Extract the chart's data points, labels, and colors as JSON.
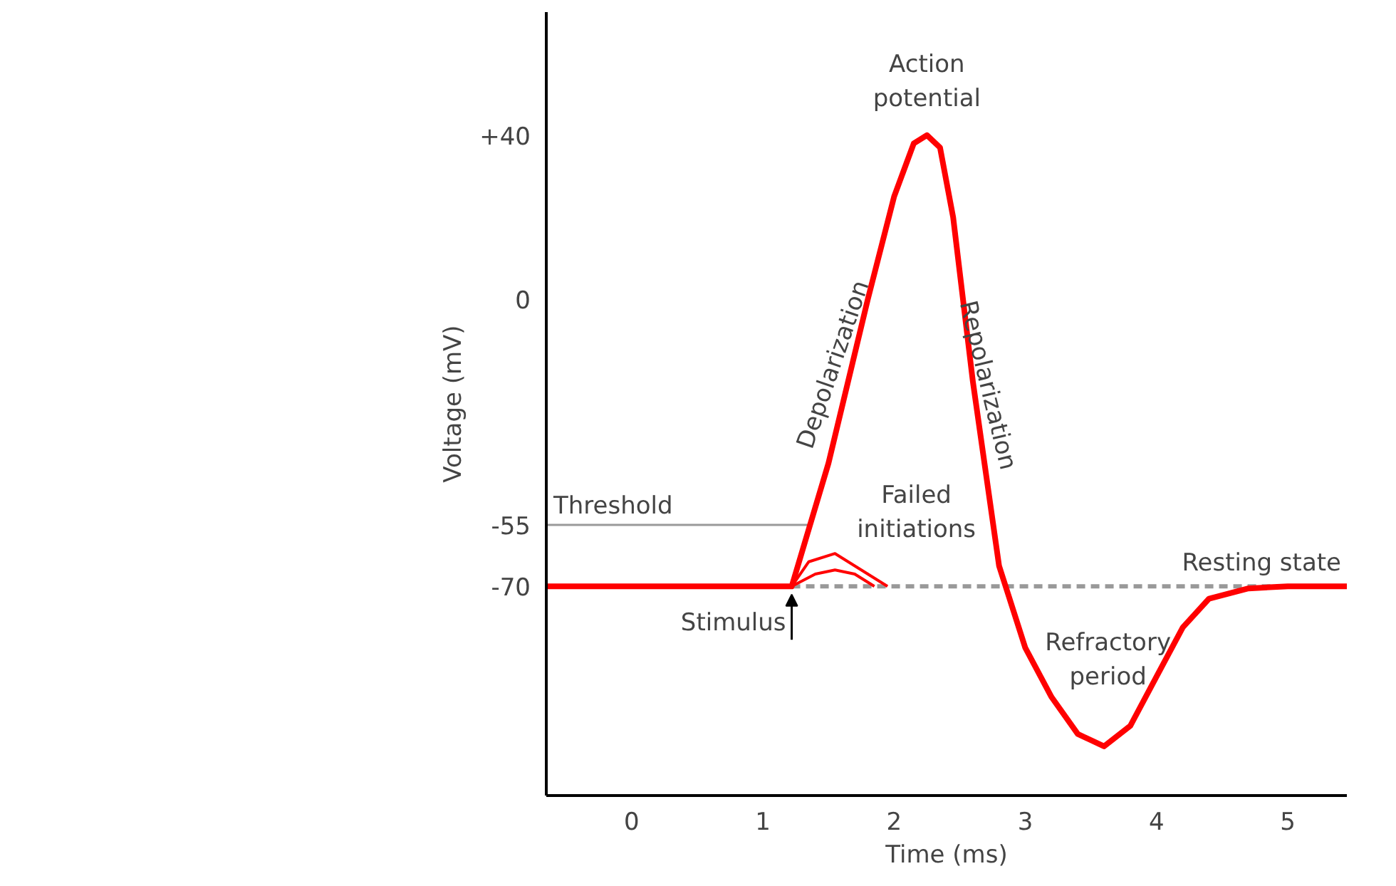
{
  "chart_data": {
    "type": "line",
    "xlabel": "Time (ms)",
    "ylabel": "Voltage (mV)",
    "x": [
      -0.65,
      1.22,
      1.5,
      1.8,
      2.0,
      2.15,
      2.25,
      2.35,
      2.45,
      2.6,
      2.8,
      3.0,
      3.2,
      3.4,
      3.6,
      3.8,
      4.0,
      4.2,
      4.4,
      4.7,
      5.0,
      5.45
    ],
    "series": [
      {
        "color": "#ff0000",
        "values": [
          -70,
          -70,
          -40,
          0,
          25,
          38,
          40,
          37,
          20,
          -20,
          -65,
          -85,
          -97,
          -106,
          -109,
          -104,
          -92,
          -80,
          -73,
          -70.5,
          -70,
          -70
        ]
      },
      {
        "color": "#ff0000",
        "x": [
          1.22,
          1.35,
          1.55,
          1.75,
          1.95
        ],
        "values": [
          -70,
          -64,
          -62,
          -66,
          -70
        ]
      },
      {
        "color": "#ff0000",
        "x": [
          1.22,
          1.4,
          1.55,
          1.7,
          1.85
        ],
        "values": [
          -70,
          -67,
          -66,
          -67,
          -70
        ]
      }
    ],
    "xlim": [
      -0.65,
      5.45
    ],
    "ylim": [
      -121,
      70
    ],
    "xticks": [
      0,
      1,
      2,
      3,
      4,
      5
    ],
    "yticks": [
      {
        "value": 40,
        "label": "+40"
      },
      0,
      -55,
      -70
    ],
    "grid": false,
    "ref_lines": [
      {
        "axis": "y",
        "value": -55,
        "label": "Threshold",
        "color": "#999999",
        "line_style": "solid"
      },
      {
        "axis": "y",
        "value": -70,
        "label": "Resting state",
        "color": "#999999",
        "line_style": "dashed"
      }
    ],
    "annotations": [
      "Action potential",
      "Depolarization",
      "Repolarization",
      "Failed initiations",
      "Refractory period",
      {
        "text": "Stimulus",
        "x": 1.22,
        "y": -70
      }
    ]
  }
}
